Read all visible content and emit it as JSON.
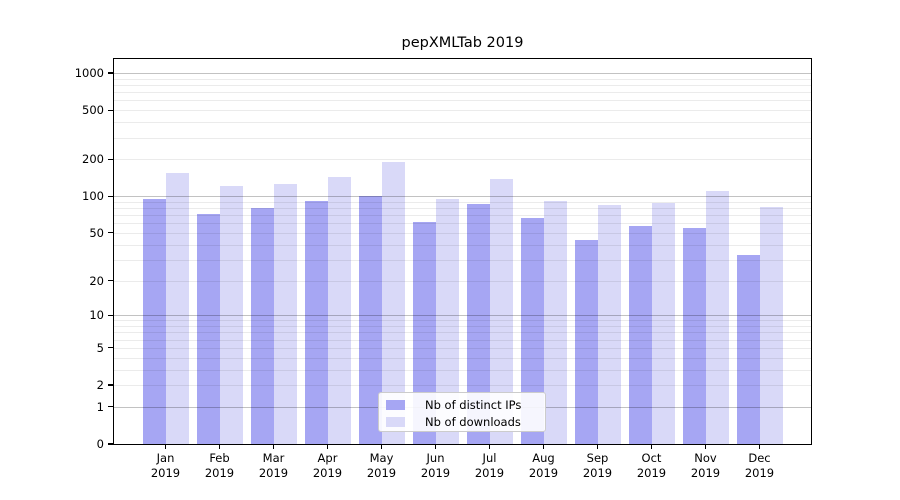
{
  "chart_data": {
    "type": "bar",
    "title": "pepXMLTab 2019",
    "xlabel": "",
    "ylabel": "",
    "yscale": "log1p",
    "ylim": [
      0,
      1300
    ],
    "grid": "on",
    "grid_over_bars": true,
    "legend_position": "lower-center",
    "x_tick_label_year": "2019",
    "categories": [
      "Jan",
      "Feb",
      "Mar",
      "Apr",
      "May",
      "Jun",
      "Jul",
      "Aug",
      "Sep",
      "Oct",
      "Nov",
      "Dec"
    ],
    "y_ticks": [
      0,
      1,
      2,
      5,
      10,
      20,
      50,
      100,
      200,
      500,
      1000
    ],
    "series": [
      {
        "name": "Nb of distinct IPs",
        "color": "#a6a6f3",
        "values": [
          95,
          71,
          80,
          92,
          100,
          61,
          87,
          66,
          44,
          57,
          55,
          33
        ]
      },
      {
        "name": "Nb of downloads",
        "color": "#d9d9f8",
        "values": [
          155,
          120,
          126,
          143,
          190,
          94,
          139,
          92,
          85,
          88,
          110,
          81
        ]
      }
    ],
    "colors": {
      "spine": "#000000",
      "major_grid": "#c2c2c2",
      "minor_grid": "#e9e9e9",
      "background": "#ffffff"
    }
  }
}
